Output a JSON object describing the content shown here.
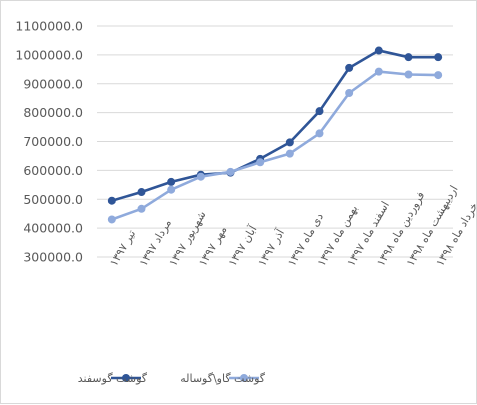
{
  "chart_data": {
    "type": "line",
    "title": "",
    "xlabel": "",
    "ylabel": "",
    "ylim": [
      300000,
      1100000
    ],
    "y_ticks": [
      "300000.0",
      "400000.0",
      "500000.0",
      "600000.0",
      "700000.0",
      "800000.0",
      "900000.0",
      "1000000.0",
      "1100000.0"
    ],
    "grid": "horizontal",
    "legend_position": "bottom",
    "categories": [
      "تیر ۱۳۹۷",
      "مرداد ۱۳۹۷",
      "شهریور ۱۳۹۷",
      "مهر ۱۳۹۷",
      "آبان ۱۳۹۷",
      "آذر ۱۳۹۷",
      "دی ماه ۱۳۹۷",
      "بهمن ماه ۱۳۹۷",
      "اسفند ماه ۱۳۹۷",
      "فروردین ماه ۱۳۹۸",
      "اردیبهشت ماه ۱۳۹۸",
      "خرداد ماه ۱۳۹۸"
    ],
    "series": [
      {
        "name": "گوشت گوسفند",
        "color": "#2F5597",
        "values": [
          495000,
          525000,
          560000,
          585000,
          592000,
          640000,
          697000,
          805000,
          955000,
          1015000,
          992000,
          992000
        ]
      },
      {
        "name": "گوشت گاو\\گوساله",
        "color": "#8FAADC",
        "values": [
          430000,
          467000,
          533000,
          578000,
          595000,
          628000,
          658000,
          728000,
          868000,
          942000,
          932000,
          930000
        ]
      }
    ]
  }
}
